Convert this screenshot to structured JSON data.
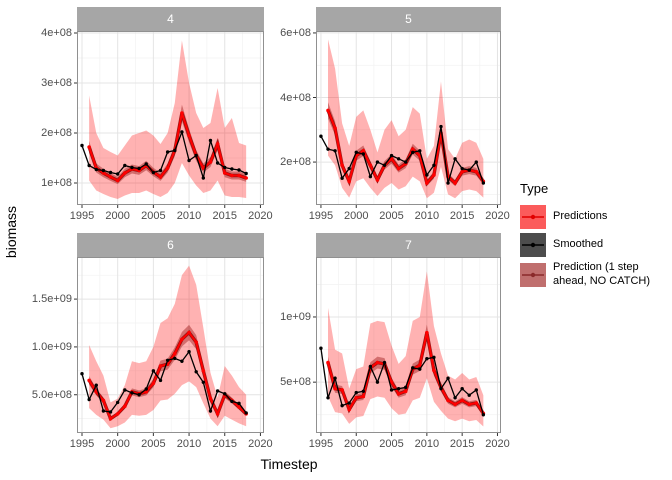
{
  "legend": {
    "title": "Type",
    "items": [
      {
        "label": "Predictions",
        "fill": "#fb5b5b",
        "line": "#e10000"
      },
      {
        "label": "Smoothed",
        "fill": "#4d4d4d",
        "line": "#000000"
      },
      {
        "label": "Prediction (1 step ahead, NO CATCH)",
        "fill": "#c06f6e",
        "line": "#8b2a2a"
      }
    ]
  },
  "colors": {
    "prediction_line": "#ff0000",
    "prediction_ribbon": "rgba(255,0,0,0.30)",
    "nc_line": "rgba(139,0,0,0.85)",
    "nc_ribbon": "rgba(139,0,0,0.38)",
    "smoothed_line": "#000000",
    "grid_major": "#e4e4e4",
    "grid_minor": "#f2f2f2",
    "panel_border": "#909090",
    "strip_bg": "#a6a6a6",
    "strip_text": "#ffffff",
    "tick_text": "#4d4d4d",
    "tick_mark": "#333333",
    "panel_bg": "#ffffff"
  },
  "chart_data": {
    "type": "line",
    "xlabel": "Timestep",
    "ylabel": "biomass",
    "legend_position": "right",
    "grid": true,
    "value_unit": 1000000,
    "x_ticks": [
      1995,
      2000,
      2005,
      2010,
      2015,
      2020
    ],
    "xlim": [
      1994.3,
      2020.5
    ],
    "years_smoothed": [
      1995,
      1996,
      1997,
      1998,
      1999,
      2000,
      2001,
      2002,
      2003,
      2004,
      2005,
      2006,
      2007,
      2008,
      2009,
      2010,
      2011,
      2012,
      2013,
      2014,
      2015,
      2016,
      2017,
      2018
    ],
    "years_pred": [
      1996,
      1997,
      1998,
      1999,
      2000,
      2001,
      2002,
      2003,
      2004,
      2005,
      2006,
      2007,
      2008,
      2009,
      2010,
      2011,
      2012,
      2013,
      2014,
      2015,
      2016,
      2017,
      2018
    ],
    "nc_band_frac": 0.07,
    "series_names": [
      "Predictions",
      "Smoothed",
      "Prediction (1 step ahead, NO CATCH)"
    ],
    "panels": [
      {
        "label": "4",
        "ylim": [
          56,
          404
        ],
        "y_ticks": [
          {
            "value": 100,
            "label": "1e+08"
          },
          {
            "value": 200,
            "label": "2e+08"
          },
          {
            "value": 300,
            "label": "3e+08"
          },
          {
            "value": 400,
            "label": "4e+08"
          }
        ],
        "series": {
          "smoothed": [
            175,
            135,
            127,
            125,
            121,
            118,
            135,
            131,
            129,
            138,
            121,
            125,
            162,
            165,
            202,
            145,
            155,
            110,
            185,
            140,
            131,
            128,
            126,
            119
          ],
          "predictions": [
            172,
            130,
            120,
            112,
            105,
            120,
            128,
            125,
            135,
            122,
            112,
            130,
            165,
            240,
            195,
            155,
            130,
            142,
            178,
            120,
            115,
            115,
            110
          ],
          "pred_upper": [
            275,
            200,
            170,
            162,
            155,
            175,
            195,
            200,
            205,
            195,
            178,
            200,
            260,
            385,
            300,
            240,
            210,
            220,
            290,
            210,
            230,
            180,
            175
          ],
          "pred_lower": [
            105,
            85,
            78,
            72,
            68,
            75,
            80,
            80,
            85,
            78,
            72,
            80,
            100,
            140,
            115,
            95,
            80,
            85,
            105,
            75,
            72,
            72,
            70
          ]
        }
      },
      {
        "label": "5",
        "ylim": [
          67,
          606
        ],
        "y_ticks": [
          {
            "value": 200,
            "label": "2e+08"
          },
          {
            "value": 400,
            "label": "4e+08"
          },
          {
            "value": 600,
            "label": "6e+08"
          }
        ],
        "series": {
          "smoothed": [
            280,
            240,
            235,
            150,
            180,
            230,
            225,
            155,
            200,
            190,
            220,
            210,
            200,
            230,
            235,
            160,
            190,
            310,
            135,
            210,
            180,
            175,
            200,
            135
          ],
          "predictions": [
            360,
            305,
            190,
            140,
            220,
            235,
            190,
            145,
            190,
            210,
            180,
            195,
            240,
            220,
            135,
            160,
            290,
            155,
            135,
            170,
            175,
            170,
            140
          ],
          "pred_upper": [
            580,
            490,
            320,
            250,
            340,
            360,
            300,
            230,
            300,
            330,
            280,
            300,
            370,
            350,
            210,
            250,
            450,
            240,
            210,
            260,
            270,
            260,
            210
          ],
          "pred_lower": [
            220,
            190,
            120,
            90,
            140,
            150,
            120,
            95,
            120,
            135,
            115,
            125,
            155,
            140,
            88,
            105,
            185,
            100,
            88,
            110,
            115,
            110,
            90
          ]
        }
      },
      {
        "label": "6",
        "ylim": [
          100,
          1940
        ],
        "y_ticks": [
          {
            "value": 500,
            "label": "5.0e+08"
          },
          {
            "value": 1000,
            "label": "1.0e+09"
          },
          {
            "value": 1500,
            "label": "1.5e+09"
          }
        ],
        "series": {
          "smoothed": [
            720,
            450,
            600,
            330,
            320,
            420,
            550,
            520,
            500,
            560,
            750,
            650,
            860,
            880,
            850,
            950,
            740,
            630,
            330,
            540,
            510,
            430,
            410,
            310
          ],
          "predictions": [
            650,
            530,
            440,
            250,
            300,
            380,
            530,
            510,
            530,
            620,
            800,
            820,
            930,
            1080,
            1150,
            1050,
            750,
            460,
            300,
            500,
            440,
            370,
            300
          ],
          "pred_upper": [
            1020,
            850,
            700,
            420,
            460,
            600,
            850,
            830,
            850,
            1000,
            1250,
            1300,
            1450,
            1750,
            1850,
            1650,
            1200,
            730,
            470,
            800,
            700,
            580,
            500
          ],
          "pred_lower": [
            360,
            290,
            240,
            150,
            170,
            210,
            290,
            280,
            290,
            340,
            440,
            450,
            510,
            600,
            640,
            580,
            410,
            250,
            170,
            280,
            240,
            200,
            170
          ]
        }
      },
      {
        "label": "7",
        "ylim": [
          110,
          1460
        ],
        "y_ticks": [
          {
            "value": 500,
            "label": "5e+08"
          },
          {
            "value": 1000,
            "label": "1e+09"
          }
        ],
        "series": {
          "smoothed": [
            760,
            380,
            530,
            320,
            340,
            420,
            430,
            620,
            500,
            650,
            440,
            450,
            460,
            610,
            600,
            680,
            690,
            450,
            530,
            380,
            450,
            400,
            440,
            250
          ],
          "predictions": [
            650,
            450,
            440,
            290,
            380,
            390,
            610,
            650,
            640,
            500,
            410,
            430,
            600,
            630,
            880,
            590,
            460,
            360,
            330,
            360,
            330,
            340,
            260
          ],
          "pred_upper": [
            1070,
            750,
            720,
            450,
            600,
            620,
            950,
            970,
            960,
            780,
            640,
            700,
            970,
            1000,
            1350,
            930,
            720,
            550,
            520,
            570,
            520,
            540,
            400
          ],
          "pred_lower": [
            390,
            270,
            260,
            180,
            230,
            240,
            370,
            390,
            380,
            300,
            250,
            260,
            360,
            380,
            530,
            350,
            280,
            220,
            200,
            220,
            200,
            210,
            160
          ]
        }
      }
    ]
  }
}
